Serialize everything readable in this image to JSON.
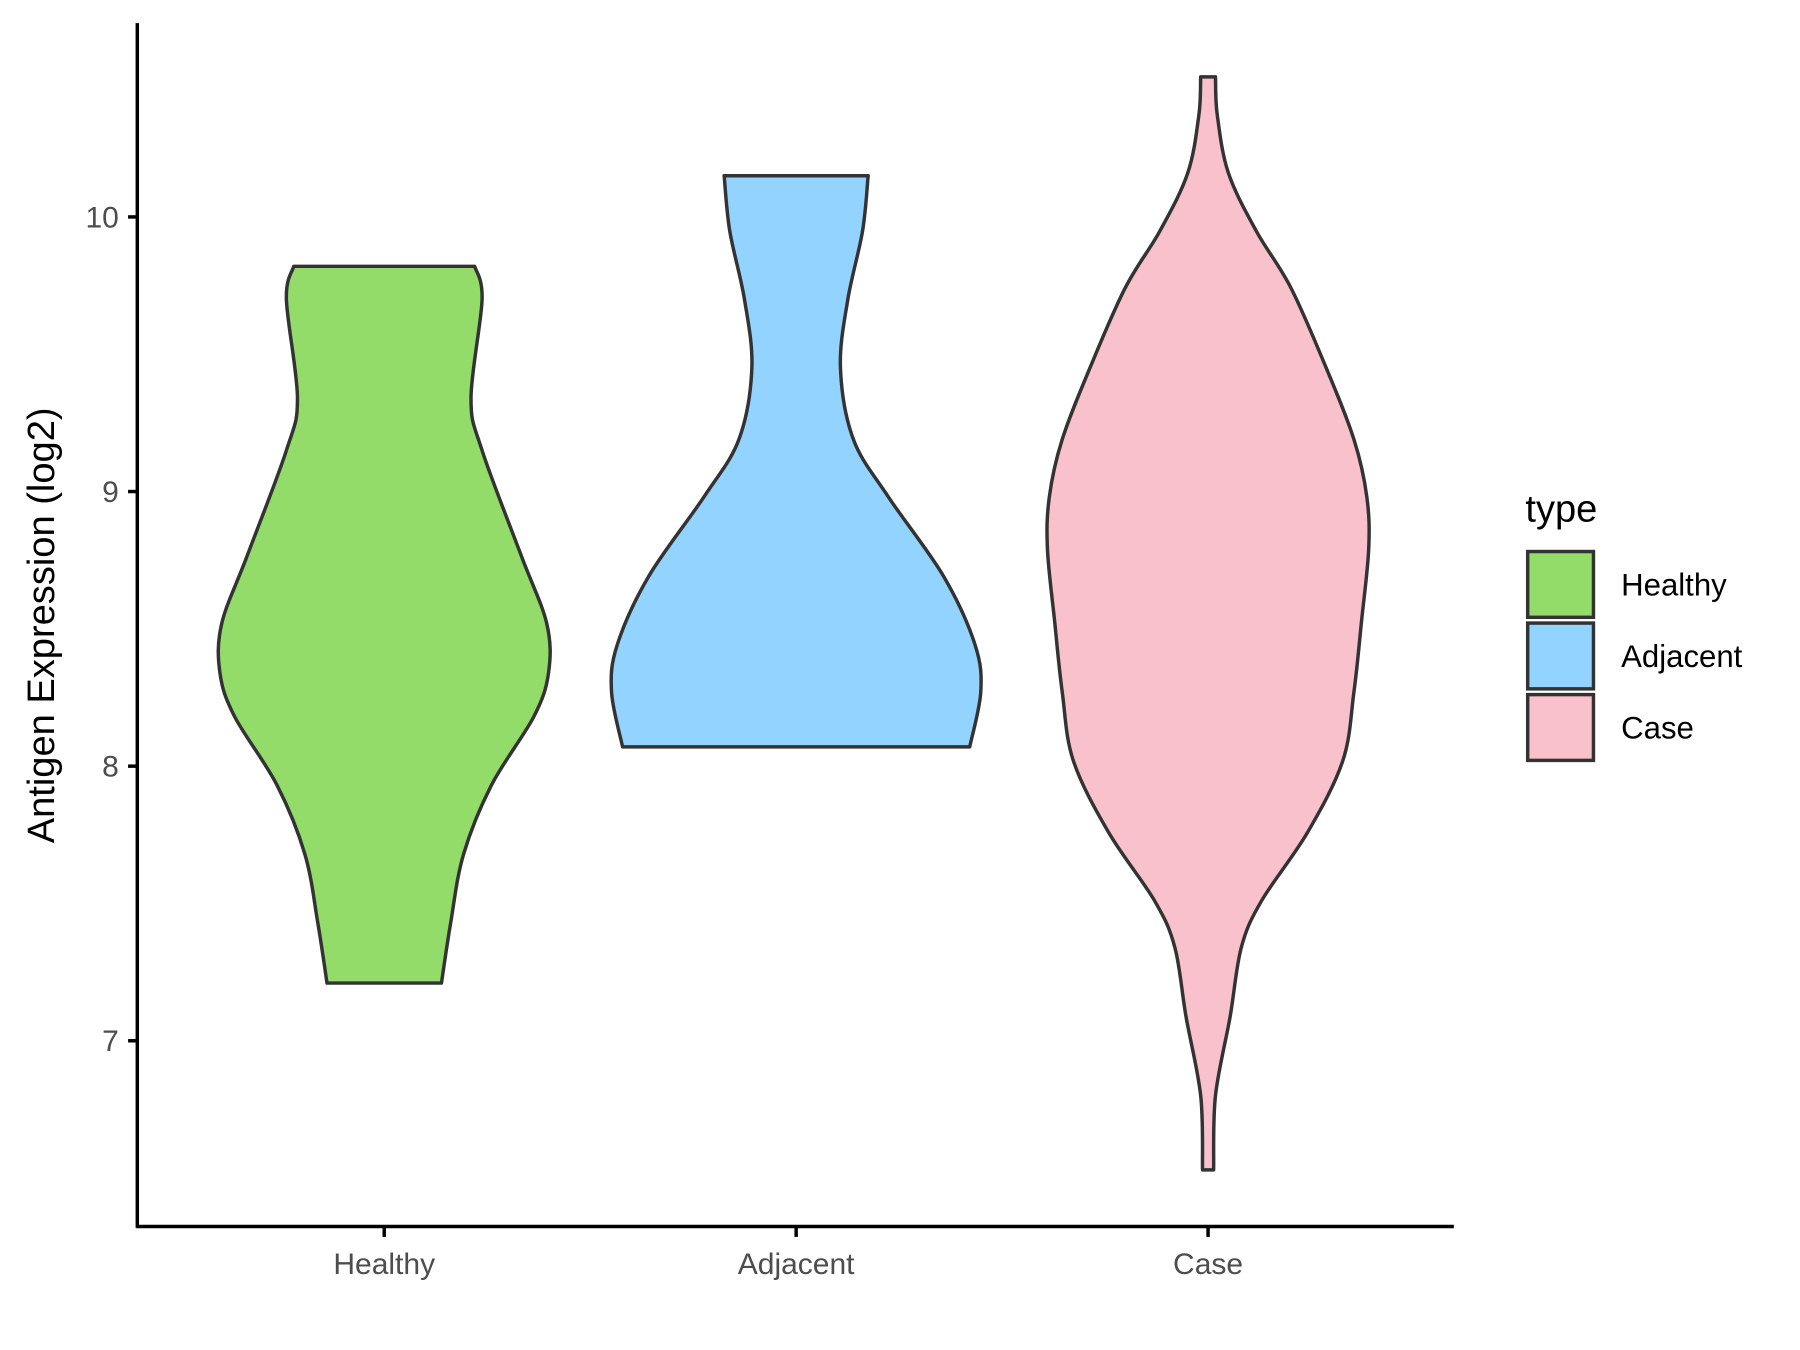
{
  "chart_data": {
    "type": "violin",
    "title": "",
    "xlabel": "",
    "ylabel": "Antigen Expression (log2)",
    "ylim": [
      6.4,
      10.7
    ],
    "yticks": [
      "7",
      "8",
      "9",
      "10"
    ],
    "categories": [
      "Healthy",
      "Adjacent",
      "Case"
    ],
    "grid": false,
    "legend": {
      "title": "type",
      "position": "right",
      "entries": [
        "Healthy",
        "Adjacent",
        "Case"
      ]
    },
    "colors": {
      "Healthy": "#93DC69",
      "Adjacent": "#93D3FF",
      "Case": "#F8C1CC",
      "outline": "#333333"
    },
    "series": [
      {
        "category": "Healthy",
        "min": 7.21,
        "max": 9.82,
        "density": [
          [
            9.82,
            0.49
          ],
          [
            9.7,
            0.53
          ],
          [
            9.34,
            0.47
          ],
          [
            9.15,
            0.53
          ],
          [
            8.77,
            0.74
          ],
          [
            8.52,
            0.88
          ],
          [
            8.34,
            0.89
          ],
          [
            8.18,
            0.81
          ],
          [
            7.93,
            0.58
          ],
          [
            7.68,
            0.43
          ],
          [
            7.43,
            0.36
          ],
          [
            7.21,
            0.31
          ]
        ]
      },
      {
        "category": "Adjacent",
        "min": 8.07,
        "max": 10.15,
        "density": [
          [
            10.15,
            0.39
          ],
          [
            9.95,
            0.36
          ],
          [
            9.7,
            0.28
          ],
          [
            9.45,
            0.24
          ],
          [
            9.19,
            0.31
          ],
          [
            8.98,
            0.5
          ],
          [
            8.69,
            0.8
          ],
          [
            8.44,
            0.97
          ],
          [
            8.27,
            1.0
          ],
          [
            8.07,
            0.94
          ]
        ]
      },
      {
        "category": "Case",
        "min": 6.53,
        "max": 10.51,
        "density": [
          [
            10.51,
            0.04
          ],
          [
            10.37,
            0.05
          ],
          [
            10.16,
            0.11
          ],
          [
            9.95,
            0.26
          ],
          [
            9.74,
            0.45
          ],
          [
            9.45,
            0.64
          ],
          [
            9.19,
            0.79
          ],
          [
            8.98,
            0.86
          ],
          [
            8.79,
            0.87
          ],
          [
            8.52,
            0.83
          ],
          [
            8.27,
            0.79
          ],
          [
            8.02,
            0.73
          ],
          [
            7.76,
            0.54
          ],
          [
            7.51,
            0.29
          ],
          [
            7.34,
            0.18
          ],
          [
            7.09,
            0.12
          ],
          [
            6.8,
            0.04
          ],
          [
            6.53,
            0.03
          ]
        ]
      }
    ]
  }
}
